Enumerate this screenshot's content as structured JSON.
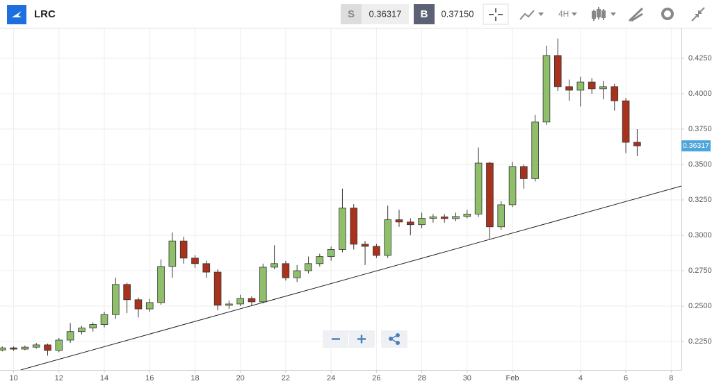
{
  "header": {
    "symbol": "LRC",
    "sell_label": "S",
    "sell_price": "0.36317",
    "buy_label": "B",
    "buy_price": "0.37150",
    "interval": "4H"
  },
  "chart_data": {
    "type": "candlestick",
    "x": [
      -0.5,
      0,
      0.5,
      1,
      1.5,
      2,
      2.5,
      3,
      3.5,
      4,
      4.5,
      5,
      5.5,
      6,
      6.5,
      7,
      7.5,
      8,
      8.5,
      9,
      9.5,
      10,
      10.5,
      11,
      11.5,
      12,
      12.5,
      13,
      13.5,
      14,
      14.5,
      15,
      15.5,
      16,
      16.5,
      17,
      17.5,
      18,
      18.5,
      19,
      19.5,
      20,
      20.5,
      21,
      21.5,
      22,
      22.5,
      23,
      23.5,
      24,
      24.5,
      25,
      25.5,
      26,
      26.5,
      27,
      27.5
    ],
    "open": [
      0.219,
      0.2205,
      0.2196,
      0.221,
      0.2226,
      0.2187,
      0.226,
      0.232,
      0.2345,
      0.237,
      0.244,
      0.2653,
      0.2545,
      0.248,
      0.2525,
      0.278,
      0.296,
      0.2839,
      0.28,
      0.274,
      0.2506,
      0.2515,
      0.2554,
      0.253,
      0.2775,
      0.28,
      0.27,
      0.275,
      0.28,
      0.285,
      0.29,
      0.3192,
      0.2937,
      0.2922,
      0.2858,
      0.311,
      0.3094,
      0.3075,
      0.312,
      0.313,
      0.3118,
      0.3133,
      0.315,
      0.351,
      0.306,
      0.3216,
      0.3486,
      0.34,
      0.38,
      0.427,
      0.405,
      0.4025,
      0.4083,
      0.4035,
      0.405,
      0.395,
      0.3657
    ],
    "high": [
      0.2215,
      0.2215,
      0.2222,
      0.224,
      0.2235,
      0.2275,
      0.238,
      0.236,
      0.2385,
      0.246,
      0.27,
      0.2665,
      0.256,
      0.255,
      0.283,
      0.302,
      0.299,
      0.286,
      0.282,
      0.276,
      0.254,
      0.258,
      0.257,
      0.28,
      0.293,
      0.282,
      0.279,
      0.285,
      0.287,
      0.292,
      0.333,
      0.322,
      0.296,
      0.294,
      0.321,
      0.318,
      0.312,
      0.316,
      0.315,
      0.315,
      0.316,
      0.318,
      0.362,
      0.352,
      0.324,
      0.352,
      0.35,
      0.385,
      0.434,
      0.439,
      0.41,
      0.412,
      0.411,
      0.409,
      0.407,
      0.397,
      0.375
    ],
    "low": [
      0.218,
      0.2185,
      0.2188,
      0.22,
      0.215,
      0.2175,
      0.224,
      0.23,
      0.232,
      0.235,
      0.241,
      0.245,
      0.242,
      0.246,
      0.251,
      0.27,
      0.28,
      0.277,
      0.27,
      0.247,
      0.248,
      0.25,
      0.25,
      0.252,
      0.276,
      0.268,
      0.267,
      0.273,
      0.278,
      0.282,
      0.288,
      0.29,
      0.279,
      0.284,
      0.284,
      0.306,
      0.3,
      0.305,
      0.309,
      0.309,
      0.31,
      0.312,
      0.313,
      0.297,
      0.304,
      0.32,
      0.333,
      0.338,
      0.378,
      0.402,
      0.395,
      0.391,
      0.4,
      0.396,
      0.388,
      0.358,
      0.356
    ],
    "close": [
      0.2205,
      0.2196,
      0.221,
      0.2226,
      0.2187,
      0.226,
      0.232,
      0.2345,
      0.237,
      0.244,
      0.2653,
      0.2545,
      0.248,
      0.2525,
      0.278,
      0.296,
      0.2839,
      0.28,
      0.274,
      0.2506,
      0.2515,
      0.2554,
      0.253,
      0.2775,
      0.28,
      0.27,
      0.275,
      0.28,
      0.285,
      0.29,
      0.3192,
      0.2937,
      0.2922,
      0.2858,
      0.311,
      0.3094,
      0.3075,
      0.312,
      0.313,
      0.3118,
      0.3133,
      0.315,
      0.351,
      0.306,
      0.3216,
      0.3486,
      0.34,
      0.38,
      0.427,
      0.405,
      0.4025,
      0.4083,
      0.4035,
      0.405,
      0.395,
      0.3657,
      0.3632
    ],
    "up_color": "#8fbf6a",
    "down_color": "#a9321d",
    "trendline": {
      "x": [
        0.31,
        29.45
      ],
      "y": [
        0.2049,
        0.3348
      ]
    },
    "last_price": {
      "value": 0.36317,
      "label": "0.36317"
    },
    "xlim": [
      -0.6,
      29.45
    ],
    "ylim": [
      0.2049,
      0.4461
    ],
    "xticks": [
      {
        "value": 0,
        "label": "10"
      },
      {
        "value": 2,
        "label": "12"
      },
      {
        "value": 4,
        "label": "14"
      },
      {
        "value": 6,
        "label": "16"
      },
      {
        "value": 8,
        "label": "18"
      },
      {
        "value": 10,
        "label": "20"
      },
      {
        "value": 12,
        "label": "22"
      },
      {
        "value": 14,
        "label": "24"
      },
      {
        "value": 16,
        "label": "26"
      },
      {
        "value": 18,
        "label": "28"
      },
      {
        "value": 20,
        "label": "30"
      },
      {
        "value": 22,
        "label": "Feb"
      },
      {
        "value": 25,
        "label": "4"
      },
      {
        "value": 27,
        "label": "6"
      },
      {
        "value": 29,
        "label": "8"
      }
    ],
    "yticks": [
      {
        "value": 0.225,
        "label": "0.22500"
      },
      {
        "value": 0.25,
        "label": "0.25000"
      },
      {
        "value": 0.275,
        "label": "0.27500"
      },
      {
        "value": 0.3,
        "label": "0.30000"
      },
      {
        "value": 0.325,
        "label": "0.32500"
      },
      {
        "value": 0.35,
        "label": "0.35000"
      },
      {
        "value": 0.375,
        "label": "0.37500"
      },
      {
        "value": 0.4,
        "label": "0.40000"
      },
      {
        "value": 0.425,
        "label": "0.42500"
      }
    ],
    "grid": true
  }
}
